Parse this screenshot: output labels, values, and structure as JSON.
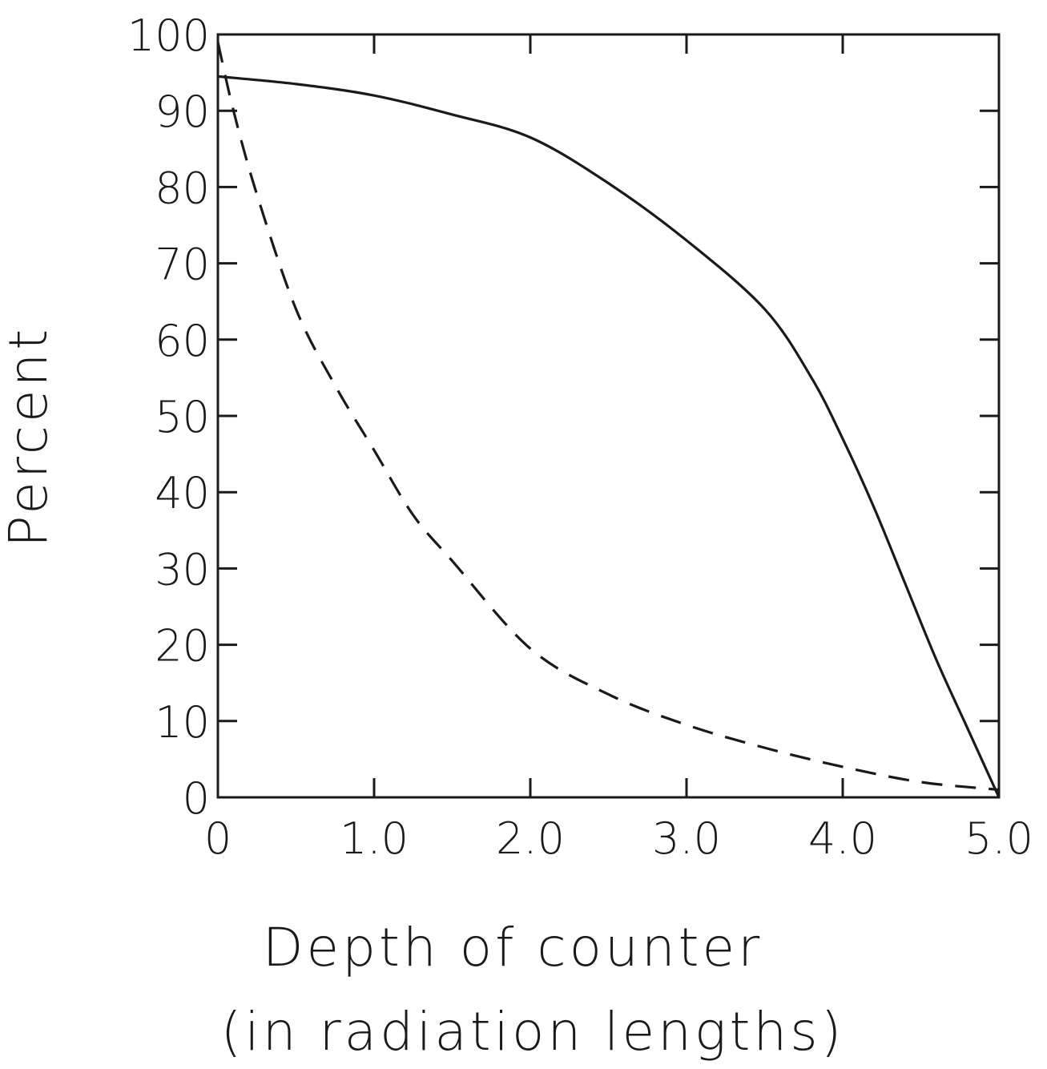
{
  "chart_data": {
    "type": "line",
    "title": "",
    "xlabel": "Depth of counter",
    "xlabel_line2": "(in radiation lengths)",
    "ylabel": "Percent",
    "xlim": [
      0,
      5.0
    ],
    "ylim": [
      0,
      100
    ],
    "x_ticks": [
      0,
      1.0,
      2.0,
      3.0,
      4.0,
      5.0
    ],
    "x_tick_labels": [
      "0",
      "1.0",
      "2.0",
      "3.0",
      "4.0",
      "5.0"
    ],
    "y_ticks": [
      0,
      10,
      20,
      30,
      40,
      50,
      60,
      70,
      80,
      90,
      100
    ],
    "y_tick_labels": [
      "0",
      "10",
      "20",
      "30",
      "40",
      "50",
      "60",
      "70",
      "80",
      "90",
      "100"
    ],
    "grid": false,
    "legend": "none",
    "series": [
      {
        "style": "solid",
        "color": "#1a1a1a",
        "x": [
          0.0,
          0.5,
          1.0,
          1.5,
          2.0,
          2.5,
          3.0,
          3.5,
          3.8,
          4.0,
          4.2,
          4.4,
          4.6,
          4.8,
          5.0
        ],
        "y": [
          94.5,
          93.5,
          92,
          89.5,
          86.5,
          80.5,
          73,
          64,
          55,
          47,
          38,
          28,
          18,
          9,
          0
        ]
      },
      {
        "style": "dashed",
        "color": "#1a1a1a",
        "x": [
          0.0,
          0.1,
          0.25,
          0.5,
          0.75,
          1.0,
          1.25,
          1.5,
          2.0,
          2.5,
          3.0,
          3.5,
          4.0,
          4.5,
          5.0
        ],
        "y": [
          99,
          90,
          79,
          64,
          54,
          45.5,
          37,
          31,
          19.5,
          13.5,
          9.5,
          6.5,
          4,
          2,
          1
        ]
      }
    ]
  }
}
